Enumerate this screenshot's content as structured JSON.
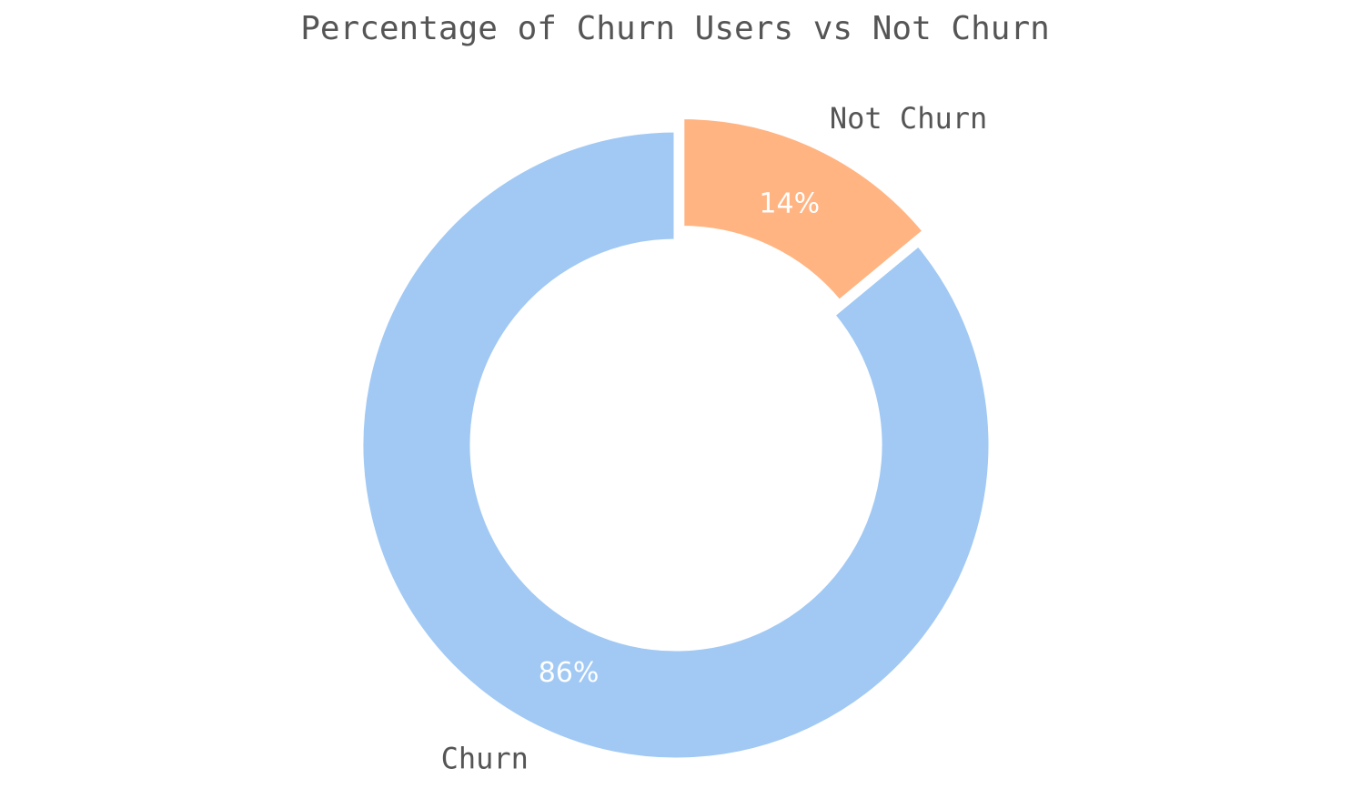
{
  "chart_data": {
    "type": "pie",
    "title": "Percentage of Churn Users vs Not Churn",
    "donut": true,
    "start": "top, clockwise",
    "slices": [
      {
        "label": "Not Churn",
        "value": 14,
        "pct_label": "14%",
        "color": "#FFB482",
        "exploded": true
      },
      {
        "label": "Churn",
        "value": 86,
        "pct_label": "86%",
        "color": "#A1C9F4",
        "exploded": false
      }
    ]
  }
}
